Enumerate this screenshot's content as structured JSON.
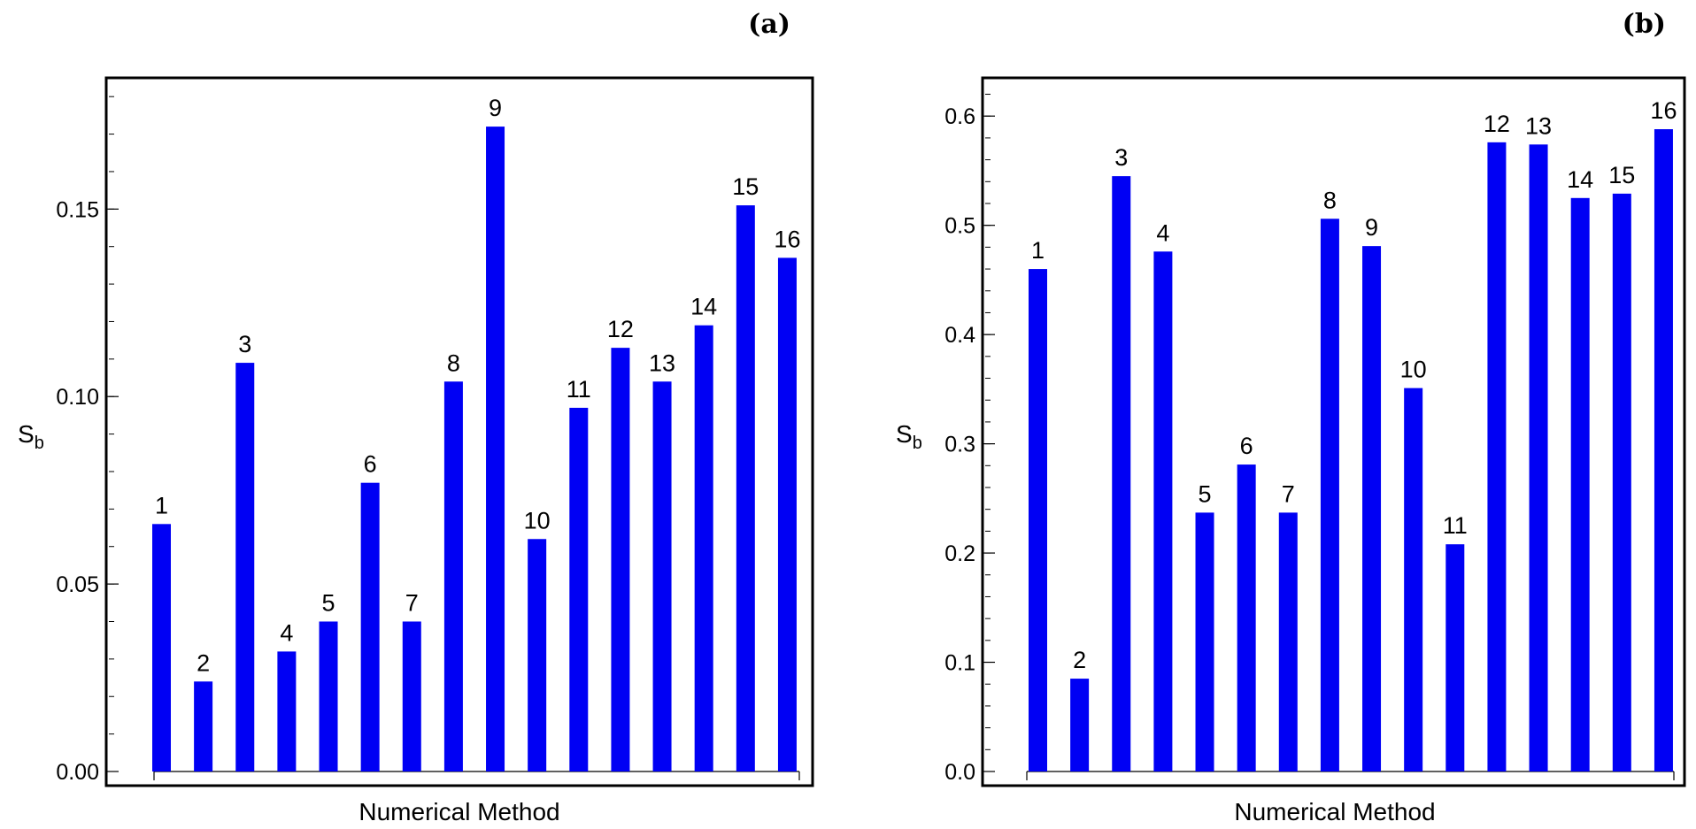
{
  "colors": {
    "bar": "#0000f4",
    "frame": "#000000",
    "background": "#ffffff"
  },
  "chart_data": [
    {
      "type": "bar",
      "panel": "(a)",
      "xlabel": "Numerical Method",
      "ylabel": "S",
      "ylabel_subscript": "b",
      "ylim": [
        0,
        0.185
      ],
      "yticks": [
        0.0,
        0.05,
        0.1,
        0.15
      ],
      "ytick_labels": [
        "0.00",
        "0.05",
        "0.10",
        "0.15"
      ],
      "minor_tick_step": 0.01,
      "categories": [
        "1",
        "2",
        "3",
        "4",
        "5",
        "6",
        "7",
        "8",
        "9",
        "10",
        "11",
        "12",
        "13",
        "14",
        "15",
        "16"
      ],
      "values": [
        0.066,
        0.024,
        0.109,
        0.032,
        0.04,
        0.077,
        0.04,
        0.104,
        0.172,
        0.062,
        0.097,
        0.113,
        0.104,
        0.119,
        0.151,
        0.137
      ]
    },
    {
      "type": "bar",
      "panel": "(b)",
      "xlabel": "Numerical Method",
      "ylabel": "S",
      "ylabel_subscript": "b",
      "ylim": [
        0,
        0.635
      ],
      "yticks": [
        0.0,
        0.1,
        0.2,
        0.3,
        0.4,
        0.5,
        0.6
      ],
      "ytick_labels": [
        "0.0",
        "0.1",
        "0.2",
        "0.3",
        "0.4",
        "0.5",
        "0.6"
      ],
      "minor_tick_step": 0.02,
      "categories": [
        "1",
        "2",
        "3",
        "4",
        "5",
        "6",
        "7",
        "8",
        "9",
        "10",
        "11",
        "12",
        "13",
        "14",
        "15",
        "16"
      ],
      "values": [
        0.46,
        0.085,
        0.545,
        0.476,
        0.237,
        0.281,
        0.237,
        0.506,
        0.481,
        0.351,
        0.208,
        0.576,
        0.574,
        0.525,
        0.529,
        0.588
      ]
    }
  ]
}
